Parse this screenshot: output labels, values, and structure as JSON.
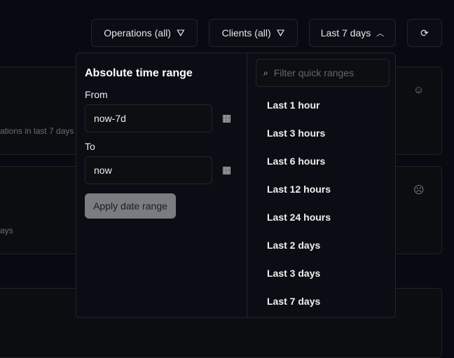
{
  "toolbar": {
    "operations": "Operations (all)",
    "clients": "Clients (all)",
    "range": "Last 7 days"
  },
  "cards": [
    {
      "subtitle": "ations in last 7 days"
    },
    {
      "subtitle": "ays"
    }
  ],
  "popover": {
    "title": "Absolute time range",
    "from_label": "From",
    "from_value": "now-7d",
    "to_label": "To",
    "to_value": "now",
    "apply": "Apply date range",
    "search_placeholder": "Filter quick ranges",
    "quick_ranges": [
      "Last 1 hour",
      "Last 3 hours",
      "Last 6 hours",
      "Last 12 hours",
      "Last 24 hours",
      "Last 2 days",
      "Last 3 days",
      "Last 7 days"
    ]
  }
}
